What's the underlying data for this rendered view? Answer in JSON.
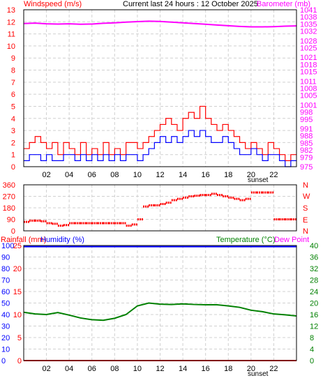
{
  "header": {
    "left_title": "Windspeed (m/s)",
    "center_title": "Current last 24 hours : 12 October 2025",
    "right_title": "Barometer (mb)"
  },
  "panel2": {
    "right_labels": [
      "N",
      "W",
      "S",
      "E",
      "N"
    ]
  },
  "panel3": {
    "left_title_a": "Rainfall (mm)",
    "left_title_b": "Humidity (%)",
    "right_title_a": "Temperature (°C)",
    "right_title_b": "Dew Point"
  },
  "sunset_label": "sunset",
  "colors": {
    "windspeed": "#ff0000",
    "wind_avg": "#0000ff",
    "barometer": "#ff00ff",
    "direction": "#ff0000",
    "temperature": "#008000",
    "humidity": "#0000ff",
    "dew_point": "#ff00ff",
    "rainfall": "#ff0000"
  },
  "chart_data": [
    {
      "type": "line",
      "title": "Current last 24 hours : 12 October 2025",
      "x_ticks": [
        "02",
        "04",
        "06",
        "08",
        "10",
        "12",
        "14",
        "16",
        "18",
        "20",
        "22"
      ],
      "xlim": [
        0,
        24
      ],
      "y_left": {
        "label": "Windspeed (m/s)",
        "ticks": [
          0,
          1,
          2,
          3,
          4,
          5,
          6,
          7,
          8,
          9,
          10,
          11,
          12,
          13
        ],
        "lim": [
          0,
          13
        ]
      },
      "y_right": {
        "label": "Barometer (mb)",
        "ticks": [
          975,
          979,
          982,
          985,
          988,
          991,
          995,
          998,
          1001,
          1005,
          1008,
          1011,
          1015,
          1018,
          1021,
          1025,
          1028,
          1032,
          1035,
          1038,
          1041
        ],
        "lim": [
          975,
          1041
        ]
      },
      "series": [
        {
          "name": "Windspeed (m/s)",
          "axis": "left",
          "style": "step",
          "x": [
            0.0,
            0.5,
            1.0,
            1.5,
            2.0,
            2.5,
            3.0,
            3.5,
            4.0,
            4.5,
            5.0,
            5.5,
            6.0,
            6.5,
            7.0,
            7.5,
            8.0,
            8.5,
            9.0,
            9.5,
            10.0,
            10.5,
            11.0,
            11.5,
            12.0,
            12.5,
            13.0,
            13.5,
            14.0,
            14.5,
            15.0,
            15.5,
            16.0,
            16.5,
            17.0,
            17.5,
            18.0,
            18.5,
            19.0,
            19.5,
            20.0,
            20.5,
            21.0,
            21.5,
            22.0,
            22.5,
            23.0,
            23.5
          ],
          "values": [
            1.5,
            2,
            2.5,
            2,
            1.5,
            2,
            1,
            2,
            1.5,
            1,
            2,
            1,
            1.5,
            1,
            2,
            1,
            1.5,
            1,
            2,
            2,
            1.5,
            2,
            2.5,
            3,
            3.5,
            4,
            3.5,
            3,
            4,
            4.5,
            4,
            5,
            4,
            3.5,
            3,
            3.5,
            3,
            2.5,
            2,
            1.5,
            2,
            1.5,
            1,
            2,
            1.5,
            1,
            0.5,
            1
          ]
        },
        {
          "name": "Wind average",
          "axis": "left",
          "style": "step",
          "x": [
            0.0,
            0.5,
            1.0,
            1.5,
            2.0,
            2.5,
            3.0,
            3.5,
            4.0,
            4.5,
            5.0,
            5.5,
            6.0,
            6.5,
            7.0,
            7.5,
            8.0,
            8.5,
            9.0,
            9.5,
            10.0,
            10.5,
            11.0,
            11.5,
            12.0,
            12.5,
            13.0,
            13.5,
            14.0,
            14.5,
            15.0,
            15.5,
            16.0,
            16.5,
            17.0,
            17.5,
            18.0,
            18.5,
            19.0,
            19.5,
            20.0,
            20.5,
            21.0,
            21.5,
            22.0,
            22.5,
            23.0,
            23.5
          ],
          "values": [
            0.5,
            1,
            1,
            0.5,
            1,
            0.5,
            0.5,
            1,
            1,
            0.5,
            1,
            0.5,
            1,
            0.5,
            1,
            0.5,
            1,
            0.5,
            1,
            1,
            0.5,
            1,
            1.5,
            2,
            2.5,
            2,
            2.5,
            2,
            2.5,
            3,
            2.5,
            3,
            2.5,
            2,
            2,
            2.5,
            2,
            1.5,
            1,
            1,
            1.5,
            1,
            0.5,
            1,
            1,
            0.5,
            0,
            0.5
          ]
        },
        {
          "name": "Barometer (mb)",
          "axis": "right",
          "x": [
            0,
            1,
            2,
            3,
            4,
            5,
            6,
            7,
            8,
            9,
            10,
            11,
            12,
            13,
            14,
            15,
            16,
            17,
            18,
            19,
            20,
            21,
            22,
            23,
            24
          ],
          "values": [
            1035.2,
            1035.4,
            1035.1,
            1035.0,
            1035.1,
            1034.9,
            1035.0,
            1035.3,
            1035.5,
            1035.8,
            1036.0,
            1036.2,
            1036.1,
            1035.8,
            1035.5,
            1035.2,
            1034.9,
            1034.6,
            1034.3,
            1034.0,
            1033.8,
            1033.8,
            1033.9,
            1034.1,
            1034.2
          ]
        }
      ]
    },
    {
      "type": "scatter",
      "y_left": {
        "ticks": [
          0,
          90,
          180,
          270,
          360
        ],
        "lim": [
          0,
          360
        ]
      },
      "y_right_labels": [
        "N",
        "W",
        "S",
        "E",
        "N"
      ],
      "xlim": [
        0,
        24
      ],
      "series": [
        {
          "name": "Wind direction",
          "x": [
            0,
            0.5,
            1,
            1.5,
            2,
            2.5,
            3,
            3.5,
            4,
            4.5,
            5,
            5.5,
            6,
            6.5,
            7,
            7.5,
            8,
            8.5,
            9,
            9.5,
            10,
            10.5,
            11,
            11.5,
            12,
            12.5,
            13,
            13.5,
            14,
            14.5,
            15,
            15.5,
            16,
            16.5,
            17,
            17.5,
            18,
            18.5,
            19,
            19.5,
            20,
            20.5,
            21,
            21.5,
            22,
            22.5,
            23,
            23.5
          ],
          "values": [
            70,
            80,
            80,
            75,
            60,
            55,
            40,
            45,
            60,
            60,
            60,
            60,
            60,
            60,
            60,
            60,
            60,
            60,
            40,
            50,
            90,
            190,
            200,
            200,
            210,
            220,
            240,
            250,
            260,
            270,
            275,
            280,
            280,
            290,
            280,
            270,
            260,
            250,
            240,
            250,
            300,
            300,
            300,
            300,
            90,
            90,
            90,
            90
          ]
        }
      ]
    },
    {
      "type": "line",
      "y_left": {
        "label": "Humidity (%)",
        "ticks": [
          0,
          10,
          20,
          30,
          40,
          50,
          60,
          70,
          80,
          90,
          100
        ],
        "lim": [
          0,
          100
        ]
      },
      "y_left_inner": {
        "label": "Rainfall (mm)",
        "ticks": [
          0,
          5,
          10,
          15,
          20,
          25
        ],
        "lim": [
          0,
          25
        ]
      },
      "y_right": {
        "label": "Temperature (°C)",
        "ticks": [
          0,
          4,
          8,
          12,
          16,
          20,
          24,
          28,
          32,
          36,
          40
        ],
        "lim": [
          0,
          40
        ]
      },
      "x_ticks": [
        "02",
        "04",
        "06",
        "08",
        "10",
        "12",
        "14",
        "16",
        "18",
        "20",
        "22"
      ],
      "xlim": [
        0,
        24
      ],
      "series": [
        {
          "name": "Temperature (°C)",
          "axis": "right",
          "x": [
            0,
            1,
            2,
            3,
            4,
            5,
            6,
            7,
            8,
            9,
            10,
            11,
            12,
            13,
            14,
            15,
            16,
            17,
            18,
            19,
            20,
            21,
            22,
            23,
            24
          ],
          "values": [
            16.8,
            16.2,
            16.0,
            16.7,
            15.8,
            14.8,
            14.2,
            14.0,
            14.7,
            16.0,
            19.0,
            20.0,
            19.6,
            19.5,
            19.7,
            19.5,
            19.4,
            19.4,
            19.0,
            18.5,
            17.5,
            17.0,
            16.2,
            15.9,
            15.5
          ]
        },
        {
          "name": "Humidity (%)",
          "axis": "left",
          "x": [
            0,
            24
          ],
          "values": [
            99,
            99
          ]
        },
        {
          "name": "Rainfall (mm)",
          "axis": "left_inner",
          "x": [
            0,
            24
          ],
          "values": [
            0,
            0
          ]
        }
      ]
    }
  ]
}
